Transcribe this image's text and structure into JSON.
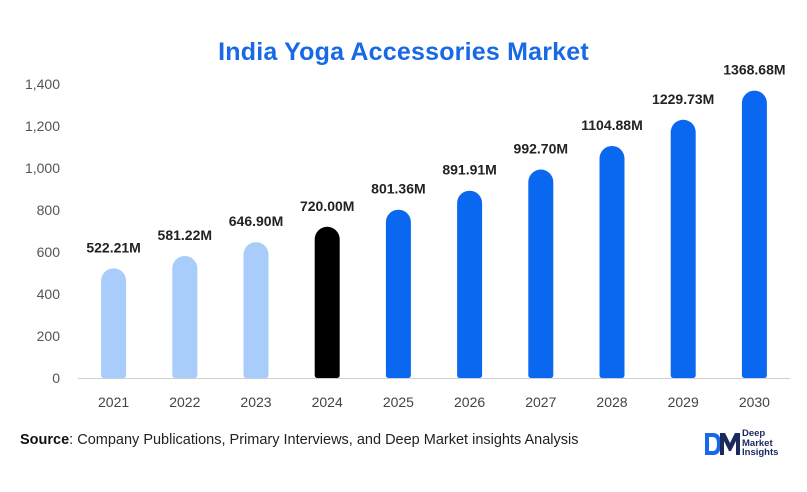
{
  "chart_data": {
    "type": "bar",
    "title": "India Yoga Accessories Market",
    "categories": [
      "2021",
      "2022",
      "2023",
      "2024",
      "2025",
      "2026",
      "2027",
      "2028",
      "2029",
      "2030"
    ],
    "values": [
      522.21,
      581.22,
      646.9,
      720.0,
      801.36,
      891.91,
      992.7,
      1104.88,
      1229.73,
      1368.68
    ],
    "data_labels": [
      "522.21M",
      "581.22M",
      "646.90M",
      "720.00M",
      "801.36M",
      "891.91M",
      "992.70M",
      "1104.88M",
      "1229.73M",
      "1368.68M"
    ],
    "bar_colors": [
      "#a8cdfb",
      "#a8cdfb",
      "#a8cdfb",
      "#000000",
      "#0a68f0",
      "#0a68f0",
      "#0a68f0",
      "#0a68f0",
      "#0a68f0",
      "#0a68f0"
    ],
    "ylim": [
      0,
      1400
    ],
    "yticks": [
      0,
      200,
      400,
      600,
      800,
      1000,
      1200,
      1400
    ],
    "ytick_labels": [
      "0",
      "200",
      "400",
      "600",
      "800",
      "1,000",
      "1,200",
      "1,400"
    ],
    "grid": false,
    "xlabel": "",
    "ylabel": ""
  },
  "footer": {
    "source_label": "Source",
    "source_text": ": Company Publications, Primary Interviews, and Deep Market insights Analysis"
  },
  "logo": {
    "line1": "Deep",
    "line2": "Market",
    "line3": "Insights",
    "mark_text": "DM",
    "color": "#1a2a5c",
    "accent": "#1769e6"
  }
}
